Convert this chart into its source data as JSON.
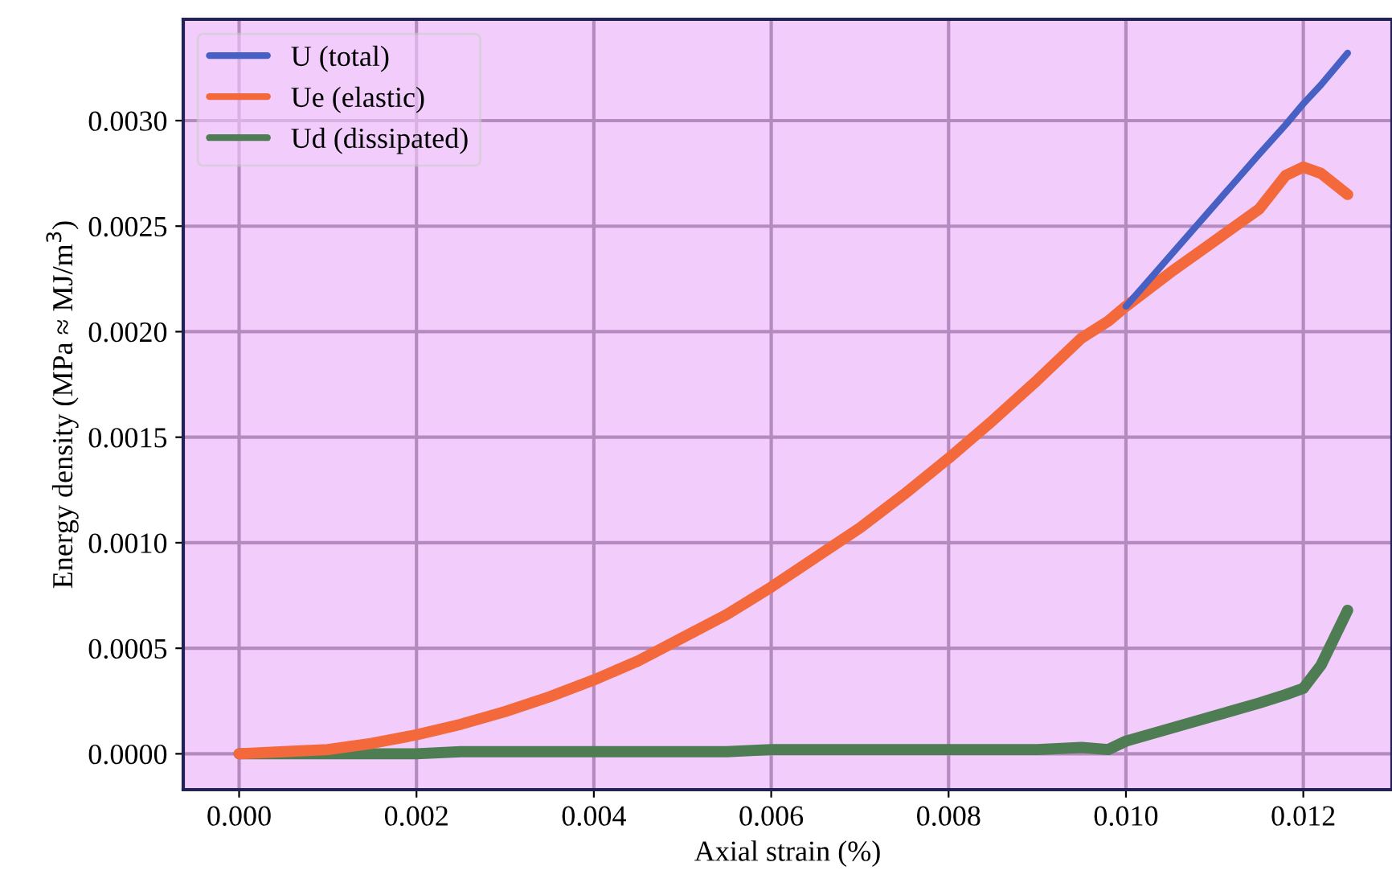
{
  "chart_data": {
    "type": "line",
    "xlabel": "Axial strain (%)",
    "ylabel": "Energy density (MPa ≈ MJ/m$^{3}$)",
    "x": [
      0,
      0.0005,
      0.001,
      0.0015,
      0.002,
      0.0025,
      0.003,
      0.0035,
      0.004,
      0.0045,
      0.005,
      0.0055,
      0.006,
      0.0065,
      0.007,
      0.0075,
      0.008,
      0.0085,
      0.009,
      0.0095,
      0.0098,
      0.01,
      0.0105,
      0.011,
      0.0115,
      0.0118,
      0.012,
      0.0122,
      0.0125
    ],
    "series": [
      {
        "name": "U (total)",
        "color": "#4760c4",
        "x": [
          0.01,
          0.0105,
          0.011,
          0.0115,
          0.0118,
          0.012,
          0.0122,
          0.0125
        ],
        "values": [
          0.00212,
          0.00236,
          0.0026,
          0.00284,
          0.00298,
          0.00308,
          0.00317,
          0.00332
        ]
      },
      {
        "name": "Ue (elastic)",
        "color": "#f4693c",
        "values": [
          0,
          1e-05,
          2e-05,
          5e-05,
          9e-05,
          0.00014,
          0.0002,
          0.00027,
          0.00035,
          0.00044,
          0.00055,
          0.00066,
          0.00079,
          0.00093,
          0.00107,
          0.00123,
          0.0014,
          0.00158,
          0.00177,
          0.00197,
          0.00205,
          0.00212,
          0.00228,
          0.00243,
          0.00258,
          0.00274,
          0.00278,
          0.00275,
          0.00265
        ]
      },
      {
        "name": "Ud (dissipated)",
        "color": "#4e7d53",
        "values": [
          0,
          0,
          0,
          0,
          0,
          1e-05,
          1e-05,
          1e-05,
          1e-05,
          1e-05,
          1e-05,
          1e-05,
          2e-05,
          2e-05,
          2e-05,
          2e-05,
          2e-05,
          2e-05,
          2e-05,
          3e-05,
          2e-05,
          6e-05,
          0.00012,
          0.00018,
          0.00024,
          0.00028,
          0.00031,
          0.00042,
          0.00068
        ]
      }
    ],
    "xlim": [
      -0.00063,
      0.013
    ],
    "xticks": [
      {
        "value": 0,
        "label": "0.000"
      },
      {
        "value": 0.002,
        "label": "0.002"
      },
      {
        "value": 0.004,
        "label": "0.004"
      },
      {
        "value": 0.006,
        "label": "0.006"
      },
      {
        "value": 0.008,
        "label": "0.008"
      },
      {
        "value": 0.01,
        "label": "0.010"
      },
      {
        "value": 0.012,
        "label": "0.012"
      }
    ],
    "ylim": [
      -0.00017,
      0.00348
    ],
    "yticks": [
      {
        "value": 0,
        "label": "0.0000"
      },
      {
        "value": 0.0005,
        "label": "0.0005"
      },
      {
        "value": 0.001,
        "label": "0.0010"
      },
      {
        "value": 0.0015,
        "label": "0.0015"
      },
      {
        "value": 0.002,
        "label": "0.0020"
      },
      {
        "value": 0.0025,
        "label": "0.0025"
      },
      {
        "value": 0.003,
        "label": "0.0030"
      }
    ],
    "grid": true,
    "legend": "top left",
    "marker": "none",
    "line_style": "solid"
  }
}
